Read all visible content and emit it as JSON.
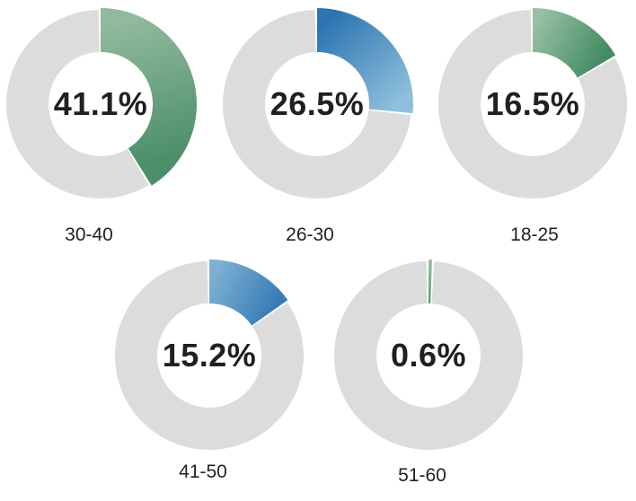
{
  "colors": {
    "track": "#dcdcdc",
    "gap": "#ffffff",
    "text": "#231f20",
    "background": "#ffffff"
  },
  "chart_data": {
    "type": "pie",
    "subtype": "donut-small-multiples",
    "description_visible_text_only": "Five donut charts showing percentage per age range",
    "categories": [
      "30-40",
      "26-30",
      "18-25",
      "41-50",
      "51-60"
    ],
    "values": [
      41.1,
      26.5,
      16.5,
      15.2,
      0.6
    ],
    "legend_position": "below-each-donut",
    "charts": [
      {
        "label": "30-40",
        "value": 41.1,
        "display": "41.1%",
        "gradient_start": "#90b99d",
        "gradient_end": "#4b8f68"
      },
      {
        "label": "26-30",
        "value": 26.5,
        "display": "26.5%",
        "gradient_start": "#2d74b2",
        "gradient_end": "#8fc0db"
      },
      {
        "label": "18-25",
        "value": 16.5,
        "display": "16.5%",
        "gradient_start": "#97bfa3",
        "gradient_end": "#448d63"
      },
      {
        "label": "41-50",
        "value": 15.2,
        "display": "15.2%",
        "gradient_start": "#7db1d2",
        "gradient_end": "#3a7db6"
      },
      {
        "label": "51-60",
        "value": 0.6,
        "display": "0.6%",
        "gradient_start": "#9cc6aa",
        "gradient_end": "#54996f"
      }
    ]
  }
}
